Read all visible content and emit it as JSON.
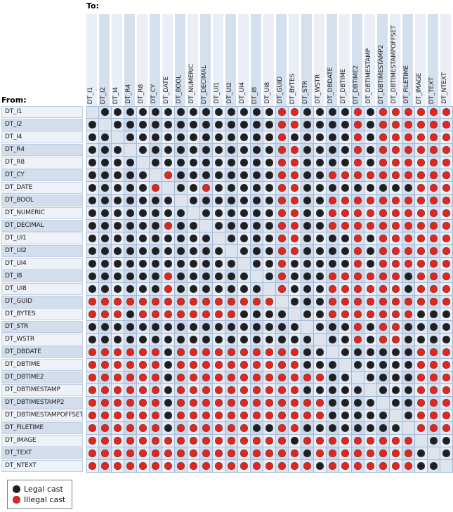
{
  "page": {
    "to_label": "To:",
    "from_label": "From:"
  },
  "legend": {
    "items": [
      {
        "label": "Legal cast",
        "key": "L",
        "color": "#1f1f1f"
      },
      {
        "label": "Illegal cast",
        "key": "X",
        "color": "#e2261b"
      }
    ]
  },
  "colors": {
    "legal_dot": "#1f1f1f",
    "illegal_dot": "#e2261b",
    "grid_line": "#a5b9d4",
    "stripe_light": "#e9eef7",
    "stripe_dark": "#d5e0ef"
  },
  "chart_data": {
    "type": "heatmap",
    "x_axis_label": "To:",
    "y_axis_label": "From:",
    "legend": {
      "L": "Legal cast (black dot)",
      "X": "Illegal cast (red dot)",
      "-": "same type (empty diagonal cell)"
    },
    "categories": [
      "DT_I1",
      "DT_I2",
      "DT_I4",
      "DT_R4",
      "DT_R8",
      "DT_CY",
      "DT_DATE",
      "DT_BOOL",
      "DT_NUMERIC",
      "DT_DECIMAL",
      "DT_UI1",
      "DT_UI2",
      "DT_UI4",
      "DT_I8",
      "DT_UI8",
      "DT_GUID",
      "DT_BYTES",
      "DT_STR",
      "DT_WSTR",
      "DT_DBDATE",
      "DT_DBTIME",
      "DT_DBTIME2",
      "DT_DBTIMESTAMP",
      "DT_DBTIMESTAMP2",
      "DT_DBTIMESTAMPOFFSET",
      "DT_FILETIME",
      "DT_IMAGE",
      "DT_TEXT",
      "DT_NTEXT"
    ],
    "rows": [
      {
        "from": "DT_I1",
        "cells": "-LLLLLLLLLLLLLLXXLLLLXLXXXXXX"
      },
      {
        "from": "DT_I2",
        "cells": "L-LLLLLLLLLLLLLXXLLLLXLXXXXXX"
      },
      {
        "from": "DT_I4",
        "cells": "LL-LLLLLLLLLLLLXLLLLLXLXXXXXX"
      },
      {
        "from": "DT_R4",
        "cells": "LLL-LLLLLLLLLLLXXLLLLXLXXXXXX"
      },
      {
        "from": "DT_R8",
        "cells": "LLLL-LLLLLLLLLLXXLLLLXLXXXXXX"
      },
      {
        "from": "DT_CY",
        "cells": "LLLLL-XLLLLLLLLXXLLXXXXXXXXXX"
      },
      {
        "from": "DT_DATE",
        "cells": "LLLLLX-LLXLLLLLXXLLLLLLLLLXXX"
      },
      {
        "from": "DT_BOOL",
        "cells": "LLLLLLL-LLLLLLLXXLLXXXXXXXXXX"
      },
      {
        "from": "DT_NUMERIC",
        "cells": "LLLLLLLL-LLLLLLXXLLXXXXXXXXXX"
      },
      {
        "from": "DT_DECIMAL",
        "cells": "LLLLLLXLL-LLLLLXXLLXXXXXXXXXX"
      },
      {
        "from": "DT_UI1",
        "cells": "LLLLLLLLLL-LLLLXXLLLLXLXXXXXX"
      },
      {
        "from": "DT_UI2",
        "cells": "LLLLLLLLLLL-LLLXXLLLLXLXXXXXX"
      },
      {
        "from": "DT_UI4",
        "cells": "LLLLLLLLLLLL-LLXLLLLLXLXXXXXX"
      },
      {
        "from": "DT_I8",
        "cells": "LLLLLLXLLLLLL-LXLLLXXXXXXLXXX"
      },
      {
        "from": "DT_UI8",
        "cells": "LLLLLLXLLLLLLL-XLLLXXXXXXLXXX"
      },
      {
        "from": "DT_GUID",
        "cells": "XXXXXXXXXXXXXXX-LLLXXXXXXXXXX"
      },
      {
        "from": "DT_BYTES",
        "cells": "XXXLXXXXXXXXLLLL-LLXXXXXXXLLL"
      },
      {
        "from": "DT_STR",
        "cells": "LLLLLLLLLLLLLLLLL-LLLXLXXLLLL"
      },
      {
        "from": "DT_WSTR",
        "cells": "LLLLLLLLLLLLLLLLLL-LLXLXXLLLL"
      },
      {
        "from": "DT_DBDATE",
        "cells": "XXXXXXLXXXXXXXXXXLL-LLLLLLXXX"
      },
      {
        "from": "DT_DBTIME",
        "cells": "XXXXXXLXXXXXXXXXXLLL-LLLLLXXX"
      },
      {
        "from": "DT_DBTIME2",
        "cells": "XXXXXXLXXXXXXXXXXXXLL-LLLLXXX"
      },
      {
        "from": "DT_DBTIMESTAMP",
        "cells": "XXXXXXLXXXXXXXXXXLLLLL-LLLXXX"
      },
      {
        "from": "DT_DBTIMESTAMP2",
        "cells": "XXXXXXLXXXXXXXXXXXXLLLL-LLXXX"
      },
      {
        "from": "DT_DBTIMESTAMPOFFSET",
        "cells": "XXXXXXLXXXXXXXXXXXXLLLLL-LXXX"
      },
      {
        "from": "DT_FILETIME",
        "cells": "XXXXXXLXXXXXXLLXXLLLLLLLL-XXX"
      },
      {
        "from": "DT_IMAGE",
        "cells": "XXXXXXXXXXXXXXXXLXXXXXXXXX-LL"
      },
      {
        "from": "DT_TEXT",
        "cells": "XXXXXXXXXXXXXXXXXLXXXXXXXXL-L"
      },
      {
        "from": "DT_NTEXT",
        "cells": "XXXXXXXXXXXXXXXXXXLXXXXXXXLL-"
      }
    ]
  }
}
